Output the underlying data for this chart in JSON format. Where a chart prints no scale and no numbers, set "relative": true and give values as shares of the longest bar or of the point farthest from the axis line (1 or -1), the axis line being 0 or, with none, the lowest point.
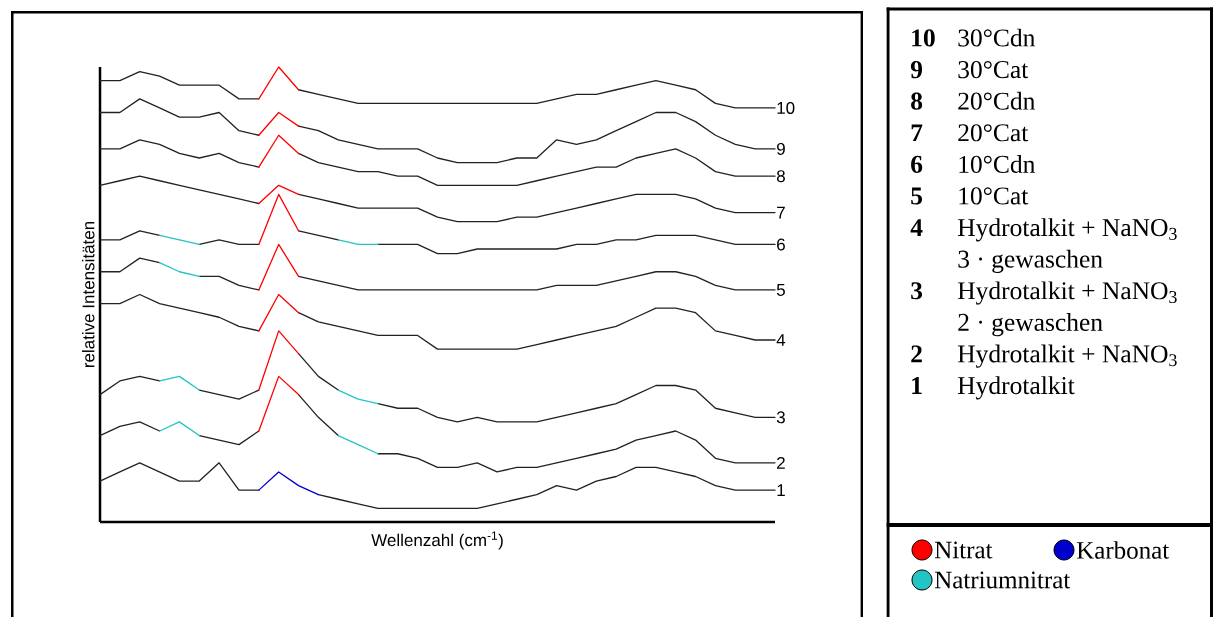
{
  "chart_data": {
    "type": "line",
    "relative": true,
    "xlabel": "Wellenzahl (cm$^{-1}$)",
    "ylabel": "relative Intensitäten",
    "legend": "bottom right",
    "categories": [
      null,
      null,
      null,
      null,
      null,
      null,
      null,
      null,
      null,
      null,
      null,
      null,
      null,
      null,
      null,
      null,
      null,
      null,
      null,
      null,
      null,
      null,
      null,
      null,
      null,
      null,
      null,
      null,
      null,
      null,
      null,
      null,
      null,
      null,
      null
    ],
    "annotations": [
      "30°Cdn",
      "30°Cat",
      "20°Cdn",
      "20°Cat",
      "10°Cdn",
      "10°Cat",
      "Hydrotalkit + NaNO$_{3}$ 3 · gewaschen",
      "Hydrotalkit + NaNO$_{3}$ 2 · gewaschen",
      "Hydrotalkit + NaNO$_{3}$",
      "Hydrotalkit"
    ],
    "series": [
      {
        "name": "1",
        "color": "#222222",
        "values": [
          0.09,
          0.11,
          0.13,
          0.11,
          0.09,
          0.09,
          0.13,
          0.07,
          0.07,
          null,
          null,
          0.06,
          0.05,
          0.04,
          0.03,
          0.03,
          0.03,
          0.03,
          0.03,
          0.03,
          0.04,
          0.05,
          0.06,
          0.08,
          0.07,
          0.09,
          0.1,
          0.12,
          0.12,
          0.11,
          0.1,
          0.08,
          0.07,
          0.07,
          0.07
        ]
      },
      {
        "name": "2",
        "color": "#222222",
        "values": [
          0.19,
          0.21,
          0.22,
          0.2,
          null,
          0.19,
          0.18,
          0.17,
          0.2,
          null,
          0.28,
          0.23,
          0.19,
          null,
          0.15,
          0.15,
          0.14,
          0.12,
          0.12,
          0.13,
          0.11,
          0.12,
          0.12,
          0.13,
          0.14,
          0.15,
          0.16,
          0.18,
          0.19,
          0.2,
          0.18,
          0.14,
          0.13,
          0.13,
          0.13
        ]
      },
      {
        "name": "3",
        "color": "#222222",
        "values": [
          0.28,
          0.31,
          0.32,
          0.31,
          null,
          0.29,
          0.28,
          0.27,
          0.29,
          null,
          0.37,
          0.32,
          0.29,
          null,
          0.26,
          0.25,
          0.25,
          0.23,
          0.22,
          0.23,
          0.22,
          0.22,
          0.22,
          0.23,
          0.24,
          0.25,
          0.26,
          0.28,
          0.3,
          0.3,
          0.29,
          0.25,
          0.24,
          0.23,
          0.23
        ]
      },
      {
        "name": "4",
        "color": "#222222",
        "values": [
          0.48,
          0.48,
          0.5,
          0.48,
          0.47,
          0.46,
          0.45,
          0.43,
          0.42,
          null,
          0.46,
          0.44,
          0.43,
          0.42,
          0.41,
          0.41,
          0.41,
          0.38,
          0.38,
          0.38,
          0.38,
          0.38,
          0.39,
          0.4,
          0.41,
          0.42,
          0.43,
          0.45,
          0.47,
          0.47,
          0.46,
          0.42,
          0.41,
          0.4,
          0.4
        ]
      },
      {
        "name": "5",
        "color": "#222222",
        "values": [
          0.55,
          0.55,
          0.58,
          0.57,
          null,
          0.54,
          0.54,
          0.52,
          0.51,
          null,
          0.54,
          0.53,
          0.52,
          0.51,
          0.51,
          0.51,
          0.51,
          0.51,
          0.51,
          0.51,
          0.51,
          0.51,
          0.51,
          0.52,
          0.52,
          0.52,
          0.53,
          0.54,
          0.55,
          0.55,
          0.54,
          0.52,
          0.51,
          0.51,
          0.51
        ]
      },
      {
        "name": "6",
        "color": "#222222",
        "values": [
          0.62,
          0.62,
          0.64,
          0.63,
          null,
          0.61,
          0.62,
          0.61,
          0.61,
          null,
          0.64,
          0.63,
          0.62,
          null,
          0.61,
          0.61,
          0.61,
          0.59,
          0.59,
          0.6,
          0.6,
          0.6,
          0.6,
          0.6,
          0.61,
          0.61,
          0.62,
          0.62,
          0.63,
          0.63,
          0.63,
          0.62,
          0.61,
          0.61,
          0.61
        ]
      },
      {
        "name": "7",
        "color": "#222222",
        "values": [
          0.74,
          0.75,
          0.76,
          0.75,
          0.74,
          0.73,
          0.72,
          0.71,
          0.7,
          null,
          0.72,
          0.71,
          0.7,
          0.69,
          0.69,
          0.69,
          0.69,
          0.67,
          0.66,
          0.66,
          0.66,
          0.67,
          0.67,
          0.68,
          0.69,
          0.7,
          0.71,
          0.72,
          0.72,
          0.72,
          0.71,
          0.69,
          0.68,
          0.68,
          0.68
        ]
      },
      {
        "name": "8",
        "color": "#222222",
        "values": [
          0.82,
          0.82,
          0.84,
          0.83,
          0.81,
          0.8,
          0.81,
          0.79,
          0.78,
          null,
          0.81,
          0.79,
          0.78,
          0.77,
          0.77,
          0.76,
          0.76,
          0.74,
          0.74,
          0.74,
          0.74,
          0.74,
          0.75,
          0.76,
          0.77,
          0.78,
          0.78,
          0.8,
          0.81,
          0.82,
          0.8,
          0.77,
          0.76,
          0.76,
          0.76
        ]
      },
      {
        "name": "9",
        "color": "#222222",
        "values": [
          0.9,
          0.9,
          0.93,
          0.91,
          0.89,
          0.89,
          0.9,
          0.86,
          0.85,
          null,
          0.87,
          0.86,
          0.84,
          0.83,
          0.82,
          0.82,
          0.82,
          0.8,
          0.79,
          0.79,
          0.79,
          0.8,
          0.8,
          0.84,
          0.83,
          0.84,
          0.86,
          0.88,
          0.9,
          0.9,
          0.88,
          0.85,
          0.83,
          0.82,
          0.82
        ]
      },
      {
        "name": "10",
        "color": "#222222",
        "values": [
          0.97,
          0.97,
          0.99,
          0.98,
          0.96,
          0.96,
          0.96,
          0.93,
          0.93,
          null,
          0.95,
          0.94,
          0.93,
          0.92,
          0.92,
          0.92,
          0.92,
          0.92,
          0.92,
          0.92,
          0.92,
          0.92,
          0.92,
          0.93,
          0.94,
          0.94,
          0.95,
          0.96,
          0.97,
          0.96,
          0.95,
          0.92,
          0.91,
          0.91,
          0.91
        ]
      },
      {
        "name": "Nitrat",
        "color": "#ff0000",
        "values": [
          null,
          null,
          null,
          null,
          null,
          null,
          null,
          null,
          0.93,
          1.0,
          0.95,
          null,
          null,
          null,
          null,
          null,
          null,
          null,
          null,
          null,
          null,
          null,
          null,
          null,
          null,
          null,
          null,
          null,
          null,
          null,
          null,
          null,
          null,
          null,
          null
        ]
      },
      {
        "color": "#ff0000",
        "values": [
          null,
          null,
          null,
          null,
          null,
          null,
          null,
          null,
          0.85,
          0.9,
          0.87,
          null,
          null,
          null,
          null,
          null,
          null,
          null,
          null,
          null,
          null,
          null,
          null,
          null,
          null,
          null,
          null,
          null,
          null,
          null,
          null,
          null,
          null,
          null,
          null
        ]
      },
      {
        "color": "#ff0000",
        "values": [
          null,
          null,
          null,
          null,
          null,
          null,
          null,
          null,
          0.78,
          0.85,
          0.81,
          null,
          null,
          null,
          null,
          null,
          null,
          null,
          null,
          null,
          null,
          null,
          null,
          null,
          null,
          null,
          null,
          null,
          null,
          null,
          null,
          null,
          null,
          null,
          null
        ]
      },
      {
        "color": "#ff0000",
        "values": [
          null,
          null,
          null,
          null,
          null,
          null,
          null,
          null,
          0.7,
          0.74,
          0.72,
          null,
          null,
          null,
          null,
          null,
          null,
          null,
          null,
          null,
          null,
          null,
          null,
          null,
          null,
          null,
          null,
          null,
          null,
          null,
          null,
          null,
          null,
          null,
          null
        ]
      },
      {
        "color": "#ff0000",
        "values": [
          null,
          null,
          null,
          null,
          null,
          null,
          null,
          null,
          0.61,
          0.72,
          0.64,
          null,
          null,
          null,
          null,
          null,
          null,
          null,
          null,
          null,
          null,
          null,
          null,
          null,
          null,
          null,
          null,
          null,
          null,
          null,
          null,
          null,
          null,
          null,
          null
        ]
      },
      {
        "color": "#ff0000",
        "values": [
          null,
          null,
          null,
          null,
          null,
          null,
          null,
          null,
          0.51,
          0.61,
          0.54,
          null,
          null,
          null,
          null,
          null,
          null,
          null,
          null,
          null,
          null,
          null,
          null,
          null,
          null,
          null,
          null,
          null,
          null,
          null,
          null,
          null,
          null,
          null,
          null
        ]
      },
      {
        "color": "#ff0000",
        "values": [
          null,
          null,
          null,
          null,
          null,
          null,
          null,
          null,
          0.42,
          0.5,
          0.46,
          null,
          null,
          null,
          null,
          null,
          null,
          null,
          null,
          null,
          null,
          null,
          null,
          null,
          null,
          null,
          null,
          null,
          null,
          null,
          null,
          null,
          null,
          null,
          null
        ]
      },
      {
        "color": "#ff0000",
        "values": [
          null,
          null,
          null,
          null,
          null,
          null,
          null,
          null,
          0.29,
          0.42,
          0.37,
          null,
          null,
          null,
          null,
          null,
          null,
          null,
          null,
          null,
          null,
          null,
          null,
          null,
          null,
          null,
          null,
          null,
          null,
          null,
          null,
          null,
          null,
          null,
          null
        ]
      },
      {
        "color": "#ff0000",
        "values": [
          null,
          null,
          null,
          null,
          null,
          null,
          null,
          null,
          0.2,
          0.32,
          0.28,
          null,
          null,
          null,
          null,
          null,
          null,
          null,
          null,
          null,
          null,
          null,
          null,
          null,
          null,
          null,
          null,
          null,
          null,
          null,
          null,
          null,
          null,
          null,
          null
        ]
      },
      {
        "name": "Karbonat",
        "color": "#0000cc",
        "values": [
          null,
          null,
          null,
          null,
          null,
          null,
          null,
          null,
          0.07,
          0.11,
          0.08,
          0.06,
          null,
          null,
          null,
          null,
          null,
          null,
          null,
          null,
          null,
          null,
          null,
          null,
          null,
          null,
          null,
          null,
          null,
          null,
          null,
          null,
          null,
          null,
          null
        ]
      },
      {
        "name": "Natriumnitrat",
        "color": "#22c4c4",
        "values": [
          null,
          null,
          null,
          0.2,
          0.22,
          0.19,
          null,
          null,
          null,
          null,
          null,
          null,
          0.19,
          0.17,
          0.15,
          null,
          null,
          null,
          null,
          null,
          null,
          null,
          null,
          null,
          null,
          null,
          null,
          null,
          null,
          null,
          null,
          null,
          null,
          null,
          null
        ]
      },
      {
        "color": "#22c4c4",
        "values": [
          null,
          null,
          null,
          0.31,
          0.32,
          0.29,
          null,
          null,
          null,
          null,
          null,
          null,
          0.29,
          0.27,
          0.26,
          null,
          null,
          null,
          null,
          null,
          null,
          null,
          null,
          null,
          null,
          null,
          null,
          null,
          null,
          null,
          null,
          null,
          null,
          null,
          null
        ]
      },
      {
        "color": "#22c4c4",
        "values": [
          null,
          null,
          null,
          0.57,
          0.55,
          0.54,
          null,
          null,
          null,
          null,
          null,
          null,
          null,
          null,
          null,
          null,
          null,
          null,
          null,
          null,
          null,
          null,
          null,
          null,
          null,
          null,
          null,
          null,
          null,
          null,
          null,
          null,
          null,
          null,
          null
        ]
      },
      {
        "color": "#22c4c4",
        "values": [
          null,
          null,
          null,
          0.63,
          0.62,
          0.61,
          null,
          null,
          null,
          null,
          null,
          null,
          0.62,
          0.61,
          0.61,
          null,
          null,
          null,
          null,
          null,
          null,
          null,
          null,
          null,
          null,
          null,
          null,
          null,
          null,
          null,
          null,
          null,
          null,
          null,
          null
        ]
      }
    ]
  }
}
